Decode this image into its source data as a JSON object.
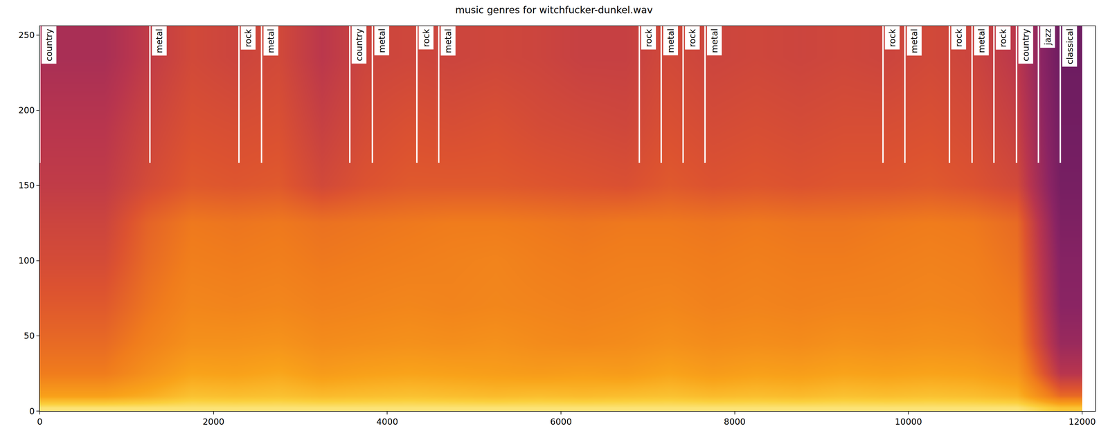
{
  "chart_data": {
    "type": "heatmap",
    "title": "music genres for witchfucker-dunkel.wav",
    "x": [
      250,
      750,
      1250,
      1750,
      2250,
      2750,
      3250,
      3750,
      4250,
      4750,
      5250,
      5750,
      6250,
      6750,
      7250,
      7750,
      8250,
      8750,
      9250,
      9750,
      10250,
      10750,
      11250,
      11750
    ],
    "y": [
      2,
      10,
      25,
      45,
      70,
      100,
      125,
      150,
      190,
      235
    ],
    "z": [
      [
        0.95,
        0.95,
        0.95,
        0.95,
        0.95,
        0.95,
        0.95,
        0.95,
        0.95,
        0.95,
        0.95,
        0.95,
        0.95,
        0.95,
        0.95,
        0.95,
        0.95,
        0.95,
        0.95,
        0.95,
        0.95,
        0.95,
        0.95,
        0.85
      ],
      [
        0.74,
        0.74,
        0.78,
        0.84,
        0.83,
        0.84,
        0.82,
        0.83,
        0.84,
        0.83,
        0.82,
        0.83,
        0.82,
        0.83,
        0.84,
        0.82,
        0.83,
        0.82,
        0.84,
        0.83,
        0.84,
        0.83,
        0.8,
        0.55
      ],
      [
        0.6,
        0.6,
        0.68,
        0.75,
        0.74,
        0.76,
        0.72,
        0.74,
        0.75,
        0.74,
        0.73,
        0.72,
        0.73,
        0.72,
        0.75,
        0.72,
        0.74,
        0.73,
        0.75,
        0.74,
        0.75,
        0.74,
        0.7,
        0.35
      ],
      [
        0.55,
        0.55,
        0.62,
        0.68,
        0.68,
        0.69,
        0.66,
        0.67,
        0.68,
        0.67,
        0.68,
        0.66,
        0.65,
        0.66,
        0.68,
        0.66,
        0.67,
        0.66,
        0.68,
        0.67,
        0.68,
        0.67,
        0.63,
        0.25
      ],
      [
        0.5,
        0.5,
        0.58,
        0.64,
        0.63,
        0.64,
        0.62,
        0.63,
        0.64,
        0.63,
        0.64,
        0.63,
        0.62,
        0.63,
        0.64,
        0.62,
        0.63,
        0.62,
        0.63,
        0.63,
        0.64,
        0.63,
        0.6,
        0.2
      ],
      [
        0.45,
        0.45,
        0.55,
        0.61,
        0.6,
        0.61,
        0.59,
        0.6,
        0.61,
        0.62,
        0.63,
        0.61,
        0.6,
        0.61,
        0.61,
        0.6,
        0.61,
        0.6,
        0.6,
        0.61,
        0.62,
        0.61,
        0.57,
        0.18
      ],
      [
        0.42,
        0.42,
        0.53,
        0.59,
        0.58,
        0.59,
        0.57,
        0.58,
        0.59,
        0.6,
        0.6,
        0.59,
        0.58,
        0.59,
        0.59,
        0.58,
        0.59,
        0.58,
        0.58,
        0.59,
        0.6,
        0.59,
        0.55,
        0.15
      ],
      [
        0.38,
        0.38,
        0.45,
        0.5,
        0.49,
        0.5,
        0.44,
        0.48,
        0.5,
        0.5,
        0.5,
        0.49,
        0.48,
        0.47,
        0.5,
        0.48,
        0.49,
        0.48,
        0.49,
        0.49,
        0.5,
        0.48,
        0.44,
        0.12
      ],
      [
        0.35,
        0.35,
        0.42,
        0.47,
        0.46,
        0.47,
        0.4,
        0.45,
        0.47,
        0.46,
        0.47,
        0.45,
        0.44,
        0.43,
        0.47,
        0.45,
        0.46,
        0.45,
        0.46,
        0.46,
        0.47,
        0.45,
        0.4,
        0.1
      ],
      [
        0.3,
        0.3,
        0.38,
        0.44,
        0.42,
        0.44,
        0.36,
        0.42,
        0.43,
        0.42,
        0.43,
        0.42,
        0.4,
        0.4,
        0.44,
        0.42,
        0.43,
        0.42,
        0.43,
        0.42,
        0.44,
        0.42,
        0.36,
        0.08
      ]
    ],
    "zlim": [
      0,
      1
    ],
    "xlim": [
      0,
      12150
    ],
    "ylim": [
      0,
      256
    ],
    "xticks": [
      0,
      2000,
      4000,
      6000,
      8000,
      10000,
      12000
    ],
    "yticks": [
      0,
      50,
      100,
      150,
      200,
      250
    ],
    "annotations": [
      {
        "text": "country",
        "x": 0,
        "y": [
          165,
          256
        ]
      },
      {
        "text": "metal",
        "x": 1268,
        "y": [
          165,
          256
        ]
      },
      {
        "text": "rock",
        "x": 2293,
        "y": [
          165,
          256
        ]
      },
      {
        "text": "metal",
        "x": 2553,
        "y": [
          165,
          256
        ]
      },
      {
        "text": "country",
        "x": 3569,
        "y": [
          165,
          256
        ]
      },
      {
        "text": "metal",
        "x": 3829,
        "y": [
          165,
          256
        ]
      },
      {
        "text": "rock",
        "x": 4341,
        "y": [
          165,
          256
        ]
      },
      {
        "text": "metal",
        "x": 4593,
        "y": [
          165,
          256
        ]
      },
      {
        "text": "rock",
        "x": 6902,
        "y": [
          165,
          256
        ]
      },
      {
        "text": "metal",
        "x": 7154,
        "y": [
          165,
          256
        ]
      },
      {
        "text": "rock",
        "x": 7406,
        "y": [
          165,
          256
        ]
      },
      {
        "text": "metal",
        "x": 7658,
        "y": [
          165,
          256
        ]
      },
      {
        "text": "rock",
        "x": 9707,
        "y": [
          165,
          256
        ]
      },
      {
        "text": "metal",
        "x": 9959,
        "y": [
          165,
          256
        ]
      },
      {
        "text": "rock",
        "x": 10472,
        "y": [
          165,
          256
        ]
      },
      {
        "text": "metal",
        "x": 10732,
        "y": [
          165,
          256
        ]
      },
      {
        "text": "rock",
        "x": 10984,
        "y": [
          165,
          256
        ]
      },
      {
        "text": "country",
        "x": 11244,
        "y": [
          165,
          256
        ]
      },
      {
        "text": "jazz",
        "x": 11496,
        "y": [
          165,
          256
        ]
      },
      {
        "text": "classical",
        "x": 11748,
        "y": [
          165,
          256
        ]
      }
    ]
  }
}
